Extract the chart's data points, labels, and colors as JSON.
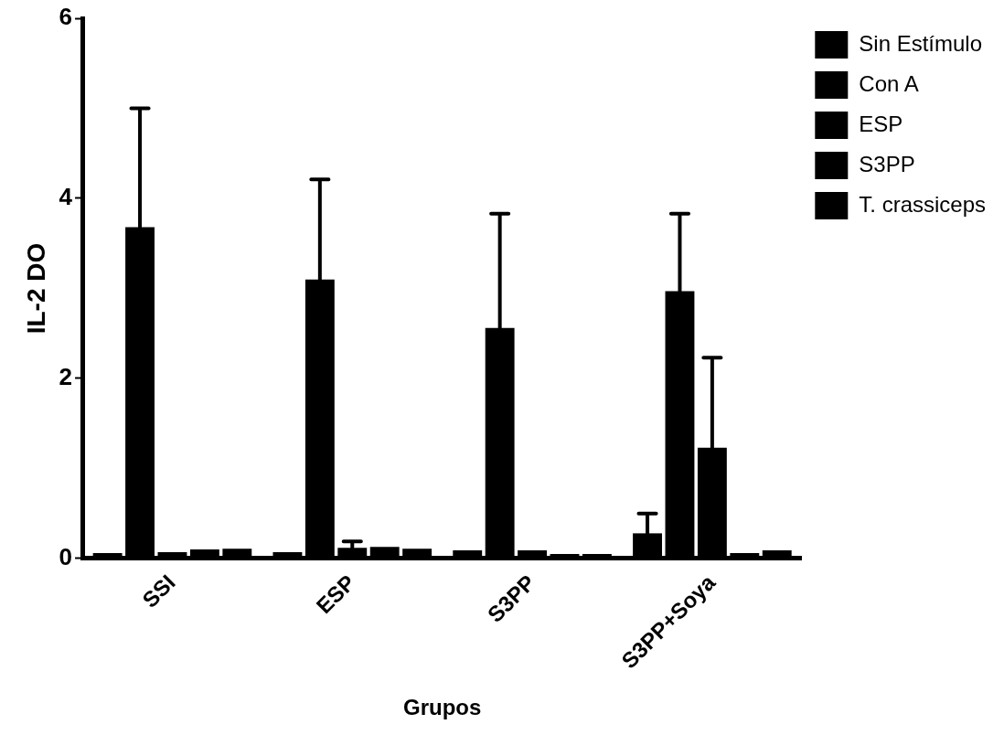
{
  "chart_data": {
    "type": "bar",
    "xlabel": "Grupos",
    "ylabel": "IL-2 DO",
    "categories": [
      "SSI",
      "ESP",
      "S3PP",
      "S3PP+Soya"
    ],
    "ylim": [
      0,
      6
    ],
    "yticks": [
      0,
      2,
      4,
      6
    ],
    "grid": false,
    "legend": "top right",
    "series": [
      {
        "name": "Sin Estímulo",
        "color": "#000000",
        "values": [
          0.06,
          0.07,
          0.09,
          0.28
        ],
        "errors": [
          null,
          null,
          null,
          [
            0.28,
            0.5
          ]
        ]
      },
      {
        "name": "Con A",
        "color": "#000000",
        "values": [
          3.68,
          3.1,
          2.56,
          2.97
        ],
        "errors": [
          [
            3.68,
            5.0
          ],
          [
            3.1,
            4.21
          ],
          [
            2.56,
            3.83
          ],
          [
            2.97,
            3.83
          ]
        ]
      },
      {
        "name": "ESP",
        "color": "#000000",
        "values": [
          0.07,
          0.12,
          0.09,
          1.23
        ],
        "errors": [
          null,
          [
            0.12,
            0.19
          ],
          null,
          [
            1.23,
            2.23
          ]
        ]
      },
      {
        "name": "S3PP",
        "color": "#000000",
        "values": [
          0.1,
          0.13,
          0.05,
          0.06
        ],
        "errors": [
          null,
          null,
          null,
          null
        ]
      },
      {
        "name": "T. crassiceps",
        "color": "#000000",
        "values": [
          0.11,
          0.11,
          0.05,
          0.09
        ],
        "errors": [
          null,
          null,
          null,
          null
        ]
      }
    ]
  }
}
